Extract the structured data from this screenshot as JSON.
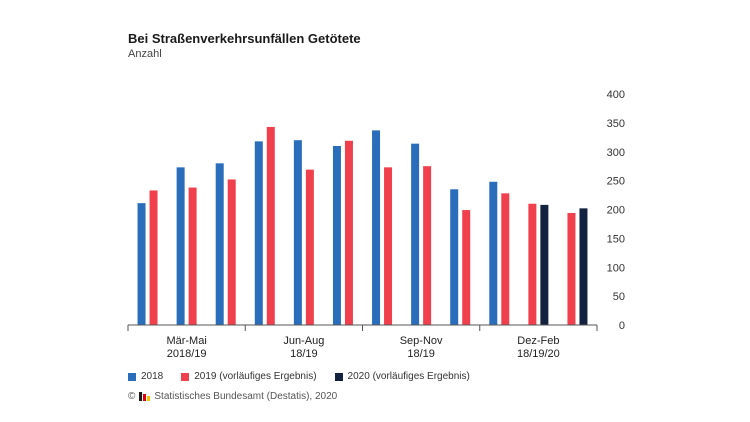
{
  "colors": {
    "s2018": "#2a6ebb",
    "s2019": "#f0404e",
    "s2020": "#13233f",
    "axis": "#555555",
    "grid": "#e6e6e6"
  },
  "source": "Statistisches Bundesamt (Destatis), 2020",
  "chart_data": {
    "type": "bar",
    "title": "Bei Straßenverkehrsunfällen Getötete",
    "subtitle": "Anzahl",
    "ylim": [
      0,
      400
    ],
    "yticks": [
      0,
      50,
      100,
      150,
      200,
      250,
      300,
      350,
      400
    ],
    "y_axis_side": "right",
    "grid": false,
    "legend_position": "bottom",
    "groups": [
      {
        "label": [
          "Mär-Mai",
          "2018/19"
        ],
        "months": [
          {
            "2018": 211,
            "2019": 233
          },
          {
            "2018": 273,
            "2019": 238
          },
          {
            "2018": 280,
            "2019": 252
          }
        ]
      },
      {
        "label": [
          "Jun-Aug",
          "18/19"
        ],
        "months": [
          {
            "2018": 318,
            "2019": 343
          },
          {
            "2018": 320,
            "2019": 269
          },
          {
            "2018": 310,
            "2019": 319
          }
        ]
      },
      {
        "label": [
          "Sep-Nov",
          "18/19"
        ],
        "months": [
          {
            "2018": 337,
            "2019": 273
          },
          {
            "2018": 314,
            "2019": 275
          },
          {
            "2018": 235,
            "2019": 199
          }
        ]
      },
      {
        "label": [
          "Dez-Feb",
          "18/19/20"
        ],
        "months": [
          {
            "2018": 248,
            "2019": 228
          },
          {
            "2019": 210,
            "2020": 208
          },
          {
            "2019": 194,
            "2020": 202
          }
        ]
      }
    ],
    "series": [
      {
        "key": "2018",
        "name": "2018",
        "color": "#2a6ebb"
      },
      {
        "key": "2019",
        "name": "2019 (vorläufiges Ergebnis)",
        "color": "#f0404e"
      },
      {
        "key": "2020",
        "name": "2020 (vorläufiges Ergebnis)",
        "color": "#13233f"
      }
    ]
  }
}
